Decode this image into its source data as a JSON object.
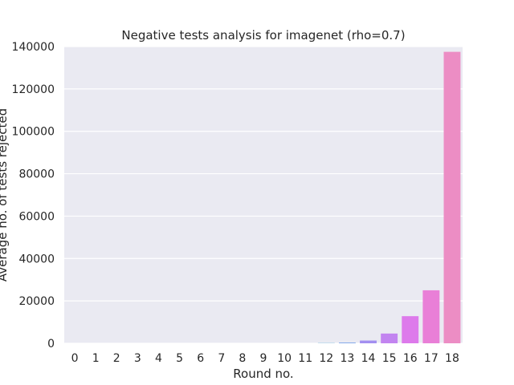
{
  "chart_data": {
    "type": "bar",
    "title": "Negative tests analysis for imagenet (rho=0.7)",
    "xlabel": "Round no.",
    "ylabel": "Average no. of tests rejected",
    "categories": [
      "0",
      "1",
      "2",
      "3",
      "4",
      "5",
      "6",
      "7",
      "8",
      "9",
      "10",
      "11",
      "12",
      "13",
      "14",
      "15",
      "16",
      "17",
      "18"
    ],
    "values": [
      0,
      0,
      0,
      0,
      0,
      0,
      0,
      0,
      0,
      0,
      0,
      0,
      100,
      300,
      1300,
      4600,
      12800,
      25000,
      137500
    ],
    "ylim": [
      0,
      140000
    ],
    "yticks": [
      0,
      20000,
      40000,
      60000,
      80000,
      100000,
      120000,
      140000
    ],
    "ytick_labels": [
      "0",
      "20000",
      "40000",
      "60000",
      "80000",
      "100000",
      "120000",
      "140000"
    ],
    "grid": true,
    "colors": [
      "#e78a4f",
      "#d8962e",
      "#c49d2e",
      "#b1a12f",
      "#9ca52f",
      "#7eaa31",
      "#4fb03a",
      "#32b06a",
      "#34ad8a",
      "#35aa9c",
      "#37a8ab",
      "#39a5bb",
      "#3ca0cf",
      "#6a99e8",
      "#a38ff0",
      "#c284f0",
      "#dd7aeb",
      "#e97fd7",
      "#ec8dc4"
    ],
    "plot_background": "#eaeaf2",
    "grid_color": "#ffffff"
  }
}
